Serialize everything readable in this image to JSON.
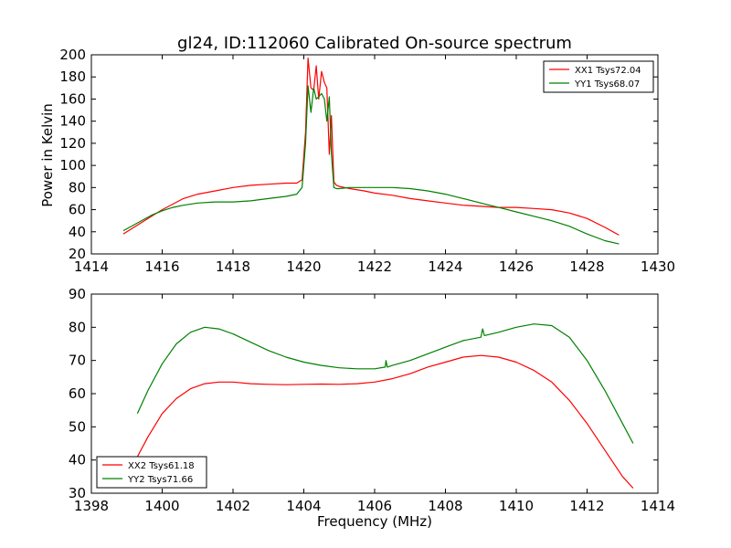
{
  "figure": {
    "title": "gl24, ID:112060 Calibrated On-source spectrum",
    "xlabel": "Frequency (MHz)",
    "ylabel_top": "Power in Kelvin"
  },
  "chart_data": [
    {
      "type": "line",
      "title": "gl24, ID:112060 Calibrated On-source spectrum",
      "xlabel": "",
      "ylabel": "Power in Kelvin",
      "xlim": [
        1414,
        1430
      ],
      "ylim": [
        20,
        200
      ],
      "xticks": [
        1414,
        1416,
        1418,
        1420,
        1422,
        1424,
        1426,
        1428,
        1430
      ],
      "yticks": [
        20,
        40,
        60,
        80,
        100,
        120,
        140,
        160,
        180,
        200
      ],
      "grid": false,
      "legend": "top-right",
      "series": [
        {
          "name": "XX1 Tsys72.04",
          "color": "#ff0000",
          "x": [
            1414.9,
            1415.3,
            1415.7,
            1416.0,
            1416.3,
            1416.6,
            1417.0,
            1417.5,
            1418.0,
            1418.5,
            1419.0,
            1419.5,
            1419.8,
            1419.95,
            1420.05,
            1420.12,
            1420.2,
            1420.28,
            1420.35,
            1420.42,
            1420.5,
            1420.58,
            1420.65,
            1420.72,
            1420.78,
            1420.85,
            1420.92,
            1421.0,
            1421.3,
            1421.7,
            1422.0,
            1422.5,
            1423.0,
            1423.5,
            1424.0,
            1424.5,
            1425.0,
            1425.5,
            1426.0,
            1426.5,
            1427.0,
            1427.5,
            1428.0,
            1428.5,
            1428.9
          ],
          "y": [
            38,
            46,
            54,
            60,
            65,
            70,
            74,
            77,
            80,
            82,
            83,
            84,
            84,
            87,
            130,
            197,
            170,
            168,
            190,
            160,
            185,
            175,
            170,
            110,
            145,
            85,
            82,
            81,
            79,
            77,
            75,
            73,
            70,
            68,
            66,
            64,
            63,
            62,
            62,
            61,
            60,
            57,
            52,
            44,
            37
          ]
        },
        {
          "name": "YY1 Tsys68.07",
          "color": "#008000",
          "x": [
            1414.9,
            1415.3,
            1415.7,
            1416.0,
            1416.3,
            1416.6,
            1417.0,
            1417.5,
            1418.0,
            1418.5,
            1419.0,
            1419.5,
            1419.8,
            1419.95,
            1420.05,
            1420.12,
            1420.2,
            1420.28,
            1420.35,
            1420.42,
            1420.5,
            1420.58,
            1420.65,
            1420.72,
            1420.78,
            1420.85,
            1420.92,
            1421.0,
            1421.3,
            1421.7,
            1422.0,
            1422.5,
            1423.0,
            1423.5,
            1424.0,
            1424.5,
            1425.0,
            1425.5,
            1426.0,
            1426.5,
            1427.0,
            1427.5,
            1428.0,
            1428.5,
            1428.9
          ],
          "y": [
            41,
            48,
            55,
            59,
            62,
            64,
            66,
            67,
            67,
            68,
            70,
            72,
            74,
            80,
            120,
            172,
            148,
            170,
            160,
            162,
            165,
            160,
            140,
            162,
            110,
            80,
            79,
            79,
            80,
            80,
            80,
            80,
            79,
            77,
            74,
            70,
            66,
            62,
            58,
            54,
            50,
            45,
            38,
            32,
            29
          ]
        }
      ]
    },
    {
      "type": "line",
      "title": "",
      "xlabel": "Frequency (MHz)",
      "ylabel": "",
      "xlim": [
        1398,
        1414
      ],
      "ylim": [
        30,
        90
      ],
      "xticks": [
        1398,
        1400,
        1402,
        1404,
        1406,
        1408,
        1410,
        1412,
        1414
      ],
      "yticks": [
        30,
        40,
        50,
        60,
        70,
        80,
        90
      ],
      "grid": false,
      "legend": "bottom-left",
      "series": [
        {
          "name": "XX2 Tsys61.18",
          "color": "#ff0000",
          "x": [
            1399.3,
            1399.6,
            1400.0,
            1400.4,
            1400.8,
            1401.2,
            1401.6,
            1402.0,
            1402.5,
            1403.0,
            1403.5,
            1404.0,
            1404.5,
            1405.0,
            1405.5,
            1406.0,
            1406.5,
            1407.0,
            1407.5,
            1408.0,
            1408.5,
            1409.0,
            1409.5,
            1410.0,
            1410.5,
            1411.0,
            1411.5,
            1412.0,
            1412.5,
            1413.0,
            1413.3
          ],
          "y": [
            41,
            47,
            54,
            58.5,
            61.5,
            63,
            63.5,
            63.5,
            63,
            62.8,
            62.7,
            62.8,
            62.9,
            62.8,
            63,
            63.5,
            64.5,
            66,
            68,
            69.5,
            71,
            71.5,
            71,
            69.5,
            67,
            63.5,
            58,
            51,
            43,
            35,
            31.5
          ]
        },
        {
          "name": "YY2 Tsys71.66",
          "color": "#008000",
          "x": [
            1399.3,
            1399.6,
            1400.0,
            1400.4,
            1400.8,
            1401.2,
            1401.6,
            1402.0,
            1402.5,
            1403.0,
            1403.5,
            1404.0,
            1404.5,
            1405.0,
            1405.5,
            1406.0,
            1406.3,
            1406.32,
            1406.36,
            1406.5,
            1407.0,
            1407.5,
            1408.0,
            1408.5,
            1409.0,
            1409.05,
            1409.1,
            1409.5,
            1410.0,
            1410.5,
            1411.0,
            1411.5,
            1412.0,
            1412.5,
            1413.0,
            1413.3
          ],
          "y": [
            54,
            61,
            69,
            75,
            78.5,
            80,
            79.5,
            78,
            75.5,
            73,
            71,
            69.5,
            68.5,
            67.8,
            67.5,
            67.5,
            68,
            70,
            68,
            68.5,
            70,
            72,
            74,
            76,
            77,
            79.5,
            77.5,
            78.5,
            80,
            81,
            80.5,
            77,
            70,
            61,
            51,
            45
          ]
        }
      ]
    }
  ]
}
